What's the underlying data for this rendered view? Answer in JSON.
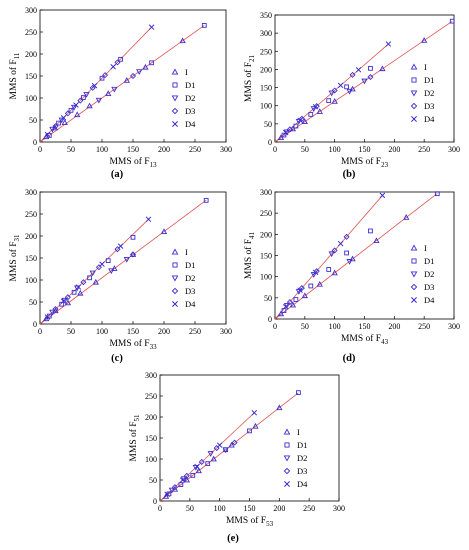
{
  "colors": {
    "marker": "#3b2fd0",
    "fit_line": "#e05050",
    "axis": "#000000"
  },
  "legend_labels": [
    "I",
    "D1",
    "D2",
    "D3",
    "D4"
  ],
  "legend_markers": [
    "triangle-up-icon",
    "square-icon",
    "triangle-down-icon",
    "diamond-icon",
    "star-icon"
  ],
  "chart_data": [
    {
      "type": "scatter",
      "panel": "(a)",
      "xlabel_prefix": "MMS of F",
      "xlabel_sub": "13",
      "ylabel_prefix": "MMS of F",
      "ylabel_sub": "11",
      "xlim": [
        0,
        300
      ],
      "ylim": [
        0,
        300
      ],
      "xticks": [
        0,
        50,
        100,
        150,
        200,
        250,
        300
      ],
      "yticks": [
        0,
        50,
        100,
        150,
        200,
        250,
        300
      ],
      "fit_lines": [
        {
          "slope": 1.45,
          "x_end": 180
        },
        {
          "slope": 1.0,
          "x_end": 265
        }
      ],
      "series": [
        {
          "name": "I",
          "marker": "triangle-up",
          "x": [
            10,
            24,
            40,
            60,
            80,
            110,
            140,
            170,
            230
          ],
          "y": [
            12,
            32,
            44,
            62,
            82,
            110,
            140,
            170,
            230
          ]
        },
        {
          "name": "D1",
          "marker": "square",
          "x": [
            15,
            30,
            50,
            70,
            100,
            130,
            180,
            265
          ],
          "y": [
            15,
            43,
            72,
            101,
            145,
            188,
            180,
            265
          ]
        },
        {
          "name": "D2",
          "marker": "triangle-down",
          "x": [
            20,
            35,
            55,
            75,
            95,
            120,
            160
          ],
          "y": [
            29,
            50,
            79,
            108,
            95,
            120,
            160
          ]
        },
        {
          "name": "D3",
          "marker": "diamond",
          "x": [
            25,
            45,
            65,
            85,
            105,
            125,
            150
          ],
          "y": [
            36,
            65,
            94,
            123,
            152,
            181,
            150
          ]
        },
        {
          "name": "D4",
          "marker": "star",
          "x": [
            12,
            38,
            58,
            88,
            118,
            180
          ],
          "y": [
            17,
            55,
            84,
            128,
            171,
            261
          ]
        }
      ]
    },
    {
      "type": "scatter",
      "panel": "(b)",
      "xlabel_prefix": "MMS of F",
      "xlabel_sub": "23",
      "ylabel_prefix": "MMS of F",
      "ylabel_sub": "21",
      "xlim": [
        0,
        300
      ],
      "ylim": [
        0,
        350
      ],
      "xticks": [
        0,
        50,
        100,
        150,
        200,
        250,
        300
      ],
      "yticks": [
        0,
        50,
        100,
        150,
        200,
        250,
        300,
        350
      ],
      "fit_lines": [
        {
          "slope": 1.42,
          "x_end": 190
        },
        {
          "slope": 1.12,
          "x_end": 297
        }
      ],
      "series": [
        {
          "name": "I",
          "marker": "triangle-up",
          "x": [
            10,
            30,
            50,
            75,
            100,
            130,
            180,
            250
          ],
          "y": [
            12,
            36,
            56,
            84,
            112,
            146,
            202,
            280
          ]
        },
        {
          "name": "D1",
          "marker": "square",
          "x": [
            15,
            35,
            60,
            90,
            120,
            160,
            297
          ],
          "y": [
            19,
            44,
            76,
            114,
            152,
            203,
            333
          ]
        },
        {
          "name": "D2",
          "marker": "triangle-down",
          "x": [
            20,
            40,
            65,
            95,
            125,
            150
          ],
          "y": [
            28,
            57,
            92,
            135,
            140,
            168
          ]
        },
        {
          "name": "D3",
          "marker": "diamond",
          "x": [
            25,
            45,
            70,
            100,
            130,
            160
          ],
          "y": [
            35,
            64,
            99,
            142,
            185,
            179
          ]
        },
        {
          "name": "D4",
          "marker": "star",
          "x": [
            18,
            42,
            68,
            110,
            140,
            190
          ],
          "y": [
            26,
            60,
            97,
            156,
            199,
            270
          ]
        }
      ]
    },
    {
      "type": "scatter",
      "panel": "(c)",
      "xlabel_prefix": "MMS of F",
      "xlabel_sub": "33",
      "ylabel_prefix": "MMS of F",
      "ylabel_sub": "31",
      "xlim": [
        0,
        300
      ],
      "ylim": [
        0,
        300
      ],
      "xticks": [
        0,
        50,
        100,
        150,
        200,
        250,
        300
      ],
      "yticks": [
        0,
        50,
        100,
        150,
        200,
        250,
        300
      ],
      "fit_lines": [
        {
          "slope": 1.36,
          "x_end": 175
        },
        {
          "slope": 1.05,
          "x_end": 268
        }
      ],
      "series": [
        {
          "name": "I",
          "marker": "triangle-up",
          "x": [
            10,
            25,
            45,
            65,
            90,
            120,
            150,
            200
          ],
          "y": [
            12,
            30,
            48,
            70,
            95,
            126,
            158,
            210
          ]
        },
        {
          "name": "D1",
          "marker": "square",
          "x": [
            15,
            35,
            55,
            80,
            110,
            150,
            268
          ],
          "y": [
            18,
            45,
            72,
            105,
            144,
            197,
            281
          ]
        },
        {
          "name": "D2",
          "marker": "triangle-down",
          "x": [
            20,
            40,
            60,
            85,
            115,
            140
          ],
          "y": [
            27,
            54,
            82,
            116,
            121,
            147
          ]
        },
        {
          "name": "D3",
          "marker": "diamond",
          "x": [
            25,
            45,
            70,
            95,
            125,
            150
          ],
          "y": [
            34,
            61,
            95,
            129,
            170,
            158
          ]
        },
        {
          "name": "D4",
          "marker": "star",
          "x": [
            12,
            38,
            62,
            100,
            130,
            175
          ],
          "y": [
            16,
            52,
            84,
            136,
            177,
            238
          ]
        }
      ]
    },
    {
      "type": "scatter",
      "panel": "(d)",
      "xlabel_prefix": "MMS of F",
      "xlabel_sub": "43",
      "ylabel_prefix": "MMS of F",
      "ylabel_sub": "41",
      "xlim": [
        0,
        300
      ],
      "ylim": [
        0,
        300
      ],
      "xticks": [
        0,
        50,
        100,
        150,
        200,
        250,
        300
      ],
      "yticks": [
        0,
        50,
        100,
        150,
        200,
        250,
        300
      ],
      "fit_lines": [
        {
          "slope": 1.62,
          "x_end": 180
        },
        {
          "slope": 1.09,
          "x_end": 272
        }
      ],
      "series": [
        {
          "name": "I",
          "marker": "triangle-up",
          "x": [
            10,
            30,
            50,
            75,
            100,
            130,
            170,
            220
          ],
          "y": [
            12,
            33,
            55,
            82,
            109,
            142,
            185,
            240
          ]
        },
        {
          "name": "D1",
          "marker": "square",
          "x": [
            15,
            35,
            60,
            90,
            120,
            160,
            272
          ],
          "y": [
            20,
            46,
            78,
            117,
            156,
            208,
            296
          ]
        },
        {
          "name": "D2",
          "marker": "triangle-down",
          "x": [
            20,
            40,
            65,
            95,
            125
          ],
          "y": [
            32,
            65,
            105,
            154,
            136
          ]
        },
        {
          "name": "D3",
          "marker": "diamond",
          "x": [
            25,
            45,
            70,
            100,
            120
          ],
          "y": [
            40,
            73,
            113,
            162,
            194
          ]
        },
        {
          "name": "D4",
          "marker": "star",
          "x": [
            18,
            42,
            68,
            110,
            180
          ],
          "y": [
            29,
            68,
            110,
            178,
            292
          ]
        }
      ]
    },
    {
      "type": "scatter",
      "panel": "(e)",
      "xlabel_prefix": "MMS of F",
      "xlabel_sub": "53",
      "ylabel_prefix": "MMS of F",
      "ylabel_sub": "51",
      "xlim": [
        0,
        300
      ],
      "ylim": [
        0,
        300
      ],
      "xticks": [
        0,
        50,
        100,
        150,
        200,
        250,
        300
      ],
      "yticks": [
        0,
        50,
        100,
        150,
        200,
        250,
        300
      ],
      "fit_lines": [
        {
          "slope": 1.33,
          "x_end": 158
        },
        {
          "slope": 1.11,
          "x_end": 232
        }
      ],
      "series": [
        {
          "name": "I",
          "marker": "triangle-up",
          "x": [
            10,
            25,
            45,
            65,
            90,
            120,
            160,
            200
          ],
          "y": [
            11,
            28,
            50,
            72,
            100,
            133,
            178,
            222
          ]
        },
        {
          "name": "D1",
          "marker": "square",
          "x": [
            15,
            35,
            55,
            80,
            110,
            150,
            232
          ],
          "y": [
            17,
            39,
            61,
            89,
            122,
            167,
            258
          ]
        },
        {
          "name": "D2",
          "marker": "triangle-down",
          "x": [
            20,
            40,
            60,
            85,
            110
          ],
          "y": [
            26,
            53,
            80,
            113,
            122
          ]
        },
        {
          "name": "D3",
          "marker": "diamond",
          "x": [
            25,
            45,
            70,
            95,
            125
          ],
          "y": [
            33,
            60,
            93,
            126,
            139
          ]
        },
        {
          "name": "D4",
          "marker": "star",
          "x": [
            12,
            38,
            62,
            100,
            158
          ],
          "y": [
            16,
            50,
            82,
            133,
            210
          ]
        }
      ]
    }
  ]
}
